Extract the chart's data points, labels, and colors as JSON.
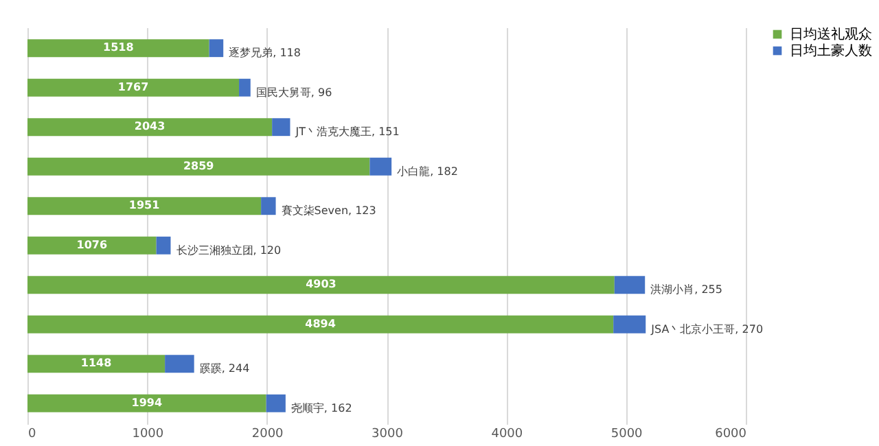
{
  "chart_data": {
    "type": "bar",
    "orientation": "horizontal",
    "stacked": true,
    "categories": [
      null,
      null,
      null,
      null,
      null,
      null,
      null,
      null,
      null,
      null
    ],
    "series": [
      {
        "name": "日均送礼观众",
        "color": "#70ad47",
        "values": [
          1518,
          1767,
          2043,
          2859,
          1951,
          1076,
          4903,
          4894,
          1148,
          1994
        ],
        "value_labels": [
          "1518",
          "1767",
          "2043",
          "2859",
          "1951",
          "1076",
          "4903",
          "4894",
          "1148",
          "1994"
        ]
      },
      {
        "name": "日均土豪人数",
        "color": "#4472c4",
        "values": [
          118,
          96,
          151,
          182,
          123,
          120,
          255,
          270,
          244,
          162
        ],
        "value_labels": [
          "逐梦兄弟, 118",
          "国民大舅哥, 96",
          "JT丶浩克大魔王, 151",
          "小白龍, 182",
          "賽文柒Seven, 123",
          "长沙三湘独立团, 120",
          "洪湖小肖, 255",
          "JSA丶北京小王哥, 270",
          "蹊蹊, 244",
          "尧顺宇, 162"
        ]
      }
    ],
    "xlim": [
      0,
      6000
    ],
    "xticks": [
      0,
      1000,
      2000,
      3000,
      4000,
      5000,
      6000
    ],
    "grid": "x",
    "legend": "right",
    "tick_labels": "x"
  }
}
